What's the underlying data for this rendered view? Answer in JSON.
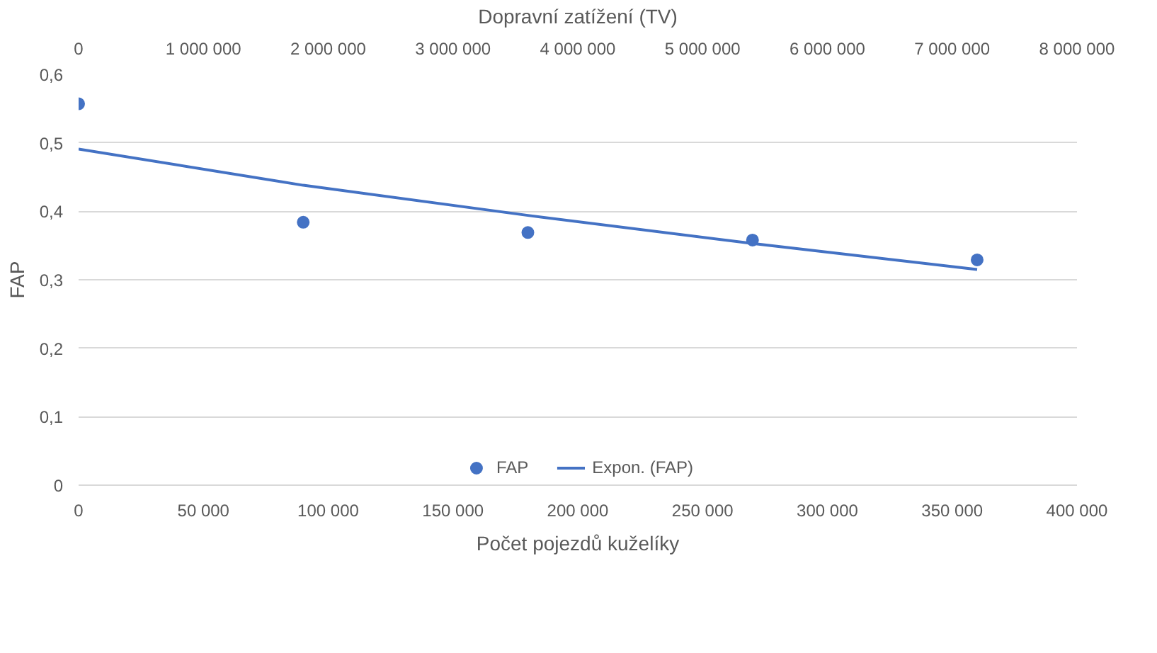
{
  "chart_data": {
    "type": "scatter",
    "xlabel": "Počet pojezdů kuželíky",
    "ylabel": "FAP",
    "x2label": "Dopravní zatížení (TV)",
    "xlim": [
      0,
      400000
    ],
    "xticks": [
      0,
      {
        "value": 50000,
        "label": "50 000"
      },
      {
        "value": 100000,
        "label": "100 000"
      },
      {
        "value": 150000,
        "label": "150 000"
      },
      {
        "value": 200000,
        "label": "200 000"
      },
      {
        "value": 250000,
        "label": "250 000"
      },
      {
        "value": 300000,
        "label": "300 000"
      },
      {
        "value": 350000,
        "label": "350 000"
      },
      {
        "value": 400000,
        "label": "400 000"
      }
    ],
    "x2lim": [
      0,
      8000000
    ],
    "x2ticks": [
      0,
      {
        "value": 1000000,
        "label": "1 000 000"
      },
      {
        "value": 2000000,
        "label": "2 000 000"
      },
      {
        "value": 3000000,
        "label": "3 000 000"
      },
      {
        "value": 4000000,
        "label": "4 000 000"
      },
      {
        "value": 5000000,
        "label": "5 000 000"
      },
      {
        "value": 6000000,
        "label": "6 000 000"
      },
      {
        "value": 7000000,
        "label": "7 000 000"
      },
      {
        "value": 8000000,
        "label": "8 000 000"
      }
    ],
    "ylim": [
      0,
      0.6
    ],
    "yticks": [
      0,
      {
        "value": 0.1,
        "label": "0,1"
      },
      {
        "value": 0.2,
        "label": "0,2"
      },
      {
        "value": 0.3,
        "label": "0,3"
      },
      {
        "value": 0.4,
        "label": "0,4"
      },
      {
        "value": 0.5,
        "label": "0,5"
      },
      {
        "value": 0.6,
        "label": "0,6"
      }
    ],
    "grid": "y",
    "legend": "bottom",
    "series": [
      {
        "name": "FAP",
        "type": "scatter",
        "marker": "circle",
        "color": "#4472c4",
        "x": [
          0,
          90000,
          180000,
          270000,
          360000
        ],
        "values": [
          0.557,
          0.384,
          0.369,
          0.358,
          0.329
        ]
      },
      {
        "name": "Expon. (FAP)",
        "type": "line",
        "marker": "none",
        "color": "#4472c4",
        "x": [
          0,
          90000,
          180000,
          270000,
          360000
        ],
        "values": [
          0.491,
          0.438,
          0.394,
          0.353,
          0.315
        ]
      }
    ]
  }
}
